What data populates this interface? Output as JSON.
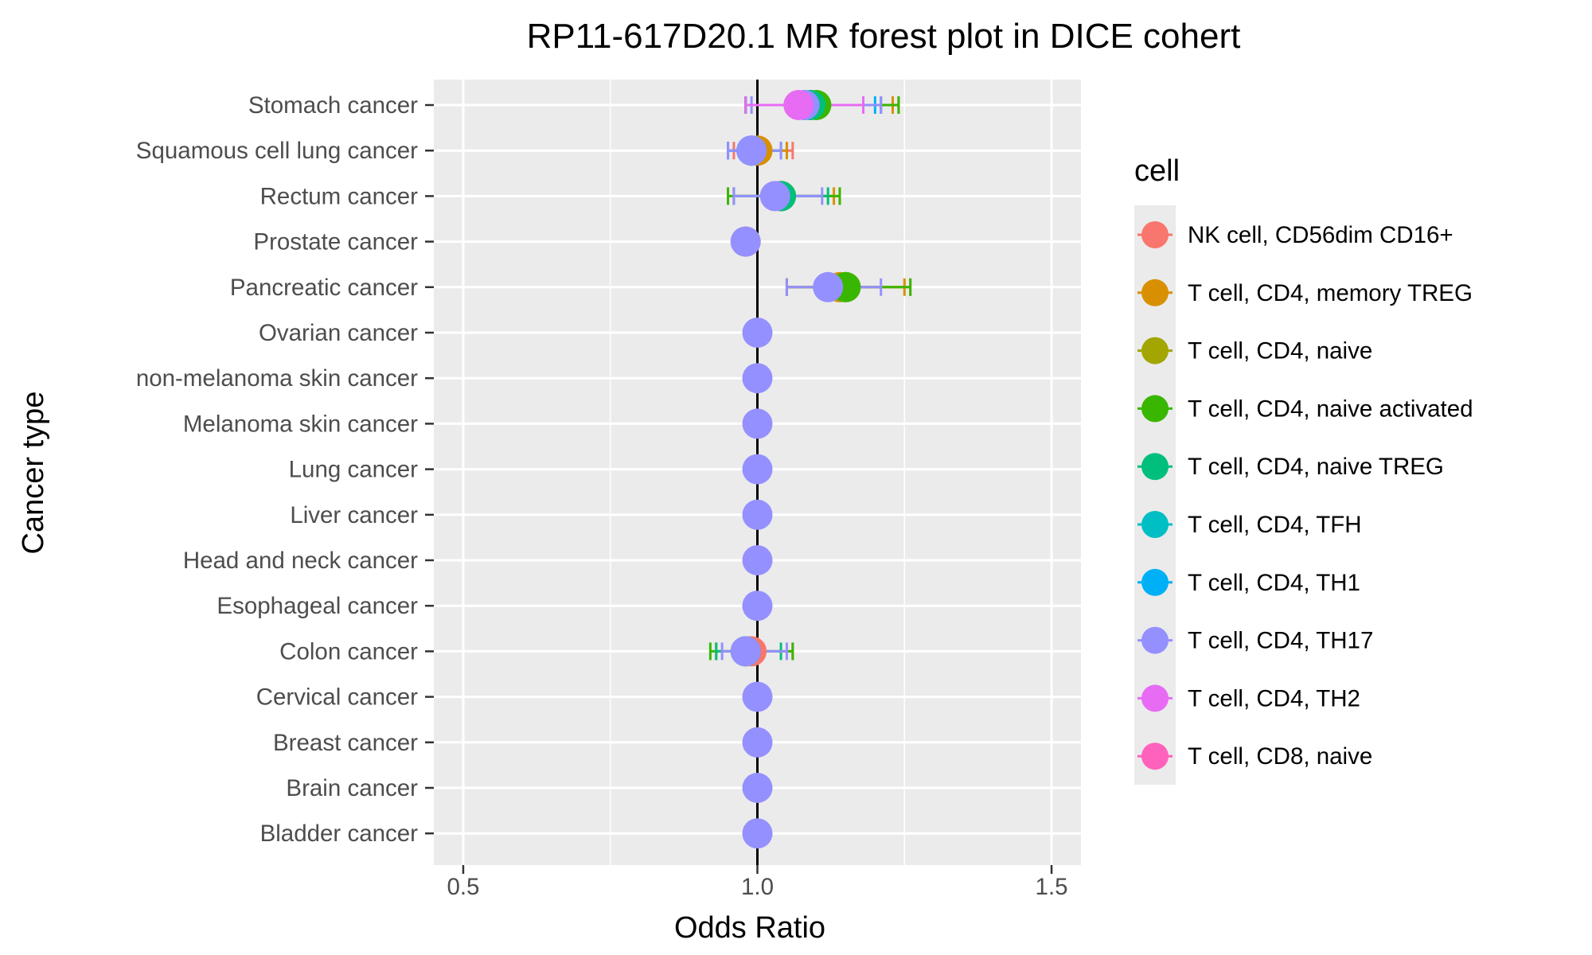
{
  "chart_data": {
    "type": "forest",
    "title": "RP11-617D20.1 MR forest plot in DICE cohert",
    "xlabel": "Odds Ratio",
    "ylabel": "Cancer type",
    "xlim": [
      0.45,
      1.55
    ],
    "x_ticks": [
      "0.5",
      "1.0",
      "1.5"
    ],
    "x_tick_values": [
      0.5,
      1.0,
      1.5
    ],
    "reference_line": 1.0,
    "categories": [
      "Stomach cancer",
      "Squamous cell lung cancer",
      "Rectum cancer",
      "Prostate cancer",
      "Pancreatic cancer",
      "Ovarian cancer",
      "non-melanoma skin cancer",
      "Melanoma skin cancer",
      "Lung cancer",
      "Liver cancer",
      "Head and neck cancer",
      "Esophageal cancer",
      "Colon cancer",
      "Cervical cancer",
      "Breast cancer",
      "Brain cancer",
      "Bladder cancer"
    ],
    "legend": {
      "title": "cell",
      "placement": "right",
      "entries": [
        {
          "label": "NK cell, CD56dim CD16+",
          "color": "#F8766D"
        },
        {
          "label": "T cell, CD4, memory TREG",
          "color": "#D89000"
        },
        {
          "label": "T cell, CD4, naive",
          "color": "#A3A500"
        },
        {
          "label": "T cell, CD4, naive activated",
          "color": "#39B600"
        },
        {
          "label": "T cell, CD4, naive TREG",
          "color": "#00BF7D"
        },
        {
          "label": "T cell, CD4, TFH",
          "color": "#00BFC4"
        },
        {
          "label": "T cell, CD4, TH1",
          "color": "#00B0F6"
        },
        {
          "label": "T cell, CD4, TH17",
          "color": "#9590FF"
        },
        {
          "label": "T cell, CD4, TH2",
          "color": "#E76BF3"
        },
        {
          "label": "T cell, CD8, naive",
          "color": "#FF62BC"
        }
      ]
    },
    "series": [
      {
        "name": "NK cell, CD56dim CD16+",
        "points": [
          {
            "cat": "Stomach cancer",
            "or": 1.09,
            "lo": 0.98,
            "hi": 1.24
          },
          {
            "cat": "Squamous cell lung cancer",
            "or": 1.0,
            "lo": 0.96,
            "hi": 1.06
          },
          {
            "cat": "Rectum cancer",
            "or": 1.04,
            "lo": 0.96,
            "hi": 1.14
          },
          {
            "cat": "Prostate cancer",
            "or": 0.98,
            "lo": 0.98,
            "hi": 0.98
          },
          {
            "cat": "Pancreatic cancer",
            "or": 1.15,
            "lo": 1.05,
            "hi": 1.26
          },
          {
            "cat": "Colon cancer",
            "or": 0.99,
            "lo": 0.93,
            "hi": 1.06
          }
        ]
      },
      {
        "name": "T cell, CD4, memory TREG",
        "points": [
          {
            "cat": "Stomach cancer",
            "or": 1.09,
            "lo": 0.98,
            "hi": 1.23
          },
          {
            "cat": "Squamous cell lung cancer",
            "or": 1.0,
            "lo": 0.95,
            "hi": 1.05
          },
          {
            "cat": "Rectum cancer",
            "or": 1.04,
            "lo": 0.96,
            "hi": 1.13
          },
          {
            "cat": "Pancreatic cancer",
            "or": 1.14,
            "lo": 1.05,
            "hi": 1.25
          }
        ]
      },
      {
        "name": "T cell, CD4, naive activated",
        "points": [
          {
            "cat": "Stomach cancer",
            "or": 1.1,
            "lo": 0.98,
            "hi": 1.24
          },
          {
            "cat": "Rectum cancer",
            "or": 1.04,
            "lo": 0.95,
            "hi": 1.14
          },
          {
            "cat": "Pancreatic cancer",
            "or": 1.15,
            "lo": 1.05,
            "hi": 1.26
          },
          {
            "cat": "Colon cancer",
            "or": 0.98,
            "lo": 0.92,
            "hi": 1.06
          }
        ]
      },
      {
        "name": "T cell, CD4, naive TREG",
        "points": [
          {
            "cat": "Stomach cancer",
            "or": 1.09,
            "lo": 0.98,
            "hi": 1.21
          },
          {
            "cat": "Rectum cancer",
            "or": 1.04,
            "lo": 0.96,
            "hi": 1.12
          },
          {
            "cat": "Colon cancer",
            "or": 0.98,
            "lo": 0.93,
            "hi": 1.04
          }
        ]
      },
      {
        "name": "T cell, CD4, TFH",
        "points": [
          {
            "cat": "Squamous cell lung cancer",
            "or": 0.99,
            "lo": 0.95,
            "hi": 1.04
          }
        ]
      },
      {
        "name": "T cell, CD4, TH1",
        "points": [
          {
            "cat": "Stomach cancer",
            "or": 1.08,
            "lo": 0.98,
            "hi": 1.2
          },
          {
            "cat": "Squamous cell lung cancer",
            "or": 0.99,
            "lo": 0.95,
            "hi": 1.04
          }
        ]
      },
      {
        "name": "T cell, CD4, TH17",
        "points": [
          {
            "cat": "Stomach cancer",
            "or": 1.08,
            "lo": 0.99,
            "hi": 1.21
          },
          {
            "cat": "Squamous cell lung cancer",
            "or": 0.99,
            "lo": 0.95,
            "hi": 1.04
          },
          {
            "cat": "Rectum cancer",
            "or": 1.03,
            "lo": 0.96,
            "hi": 1.11
          },
          {
            "cat": "Prostate cancer",
            "or": 0.98,
            "lo": 0.98,
            "hi": 0.98
          },
          {
            "cat": "Pancreatic cancer",
            "or": 1.12,
            "lo": 1.05,
            "hi": 1.21
          },
          {
            "cat": "Ovarian cancer",
            "or": 1.0,
            "lo": 1.0,
            "hi": 1.0
          },
          {
            "cat": "non-melanoma skin cancer",
            "or": 1.0,
            "lo": 1.0,
            "hi": 1.0
          },
          {
            "cat": "Melanoma skin cancer",
            "or": 1.0,
            "lo": 1.0,
            "hi": 1.0
          },
          {
            "cat": "Lung cancer",
            "or": 1.0,
            "lo": 1.0,
            "hi": 1.0
          },
          {
            "cat": "Liver cancer",
            "or": 1.0,
            "lo": 1.0,
            "hi": 1.0
          },
          {
            "cat": "Head and neck cancer",
            "or": 1.0,
            "lo": 1.0,
            "hi": 1.0
          },
          {
            "cat": "Esophageal cancer",
            "or": 1.0,
            "lo": 1.0,
            "hi": 1.0
          },
          {
            "cat": "Colon cancer",
            "or": 0.98,
            "lo": 0.94,
            "hi": 1.05
          },
          {
            "cat": "Cervical cancer",
            "or": 1.0,
            "lo": 1.0,
            "hi": 1.0
          },
          {
            "cat": "Breast cancer",
            "or": 1.0,
            "lo": 1.0,
            "hi": 1.0
          },
          {
            "cat": "Brain cancer",
            "or": 1.0,
            "lo": 1.0,
            "hi": 1.0
          },
          {
            "cat": "Bladder cancer",
            "or": 1.0,
            "lo": 1.0,
            "hi": 1.0
          }
        ]
      },
      {
        "name": "T cell, CD4, TH2",
        "points": [
          {
            "cat": "Stomach cancer",
            "or": 1.07,
            "lo": 0.98,
            "hi": 1.18
          }
        ]
      }
    ]
  }
}
